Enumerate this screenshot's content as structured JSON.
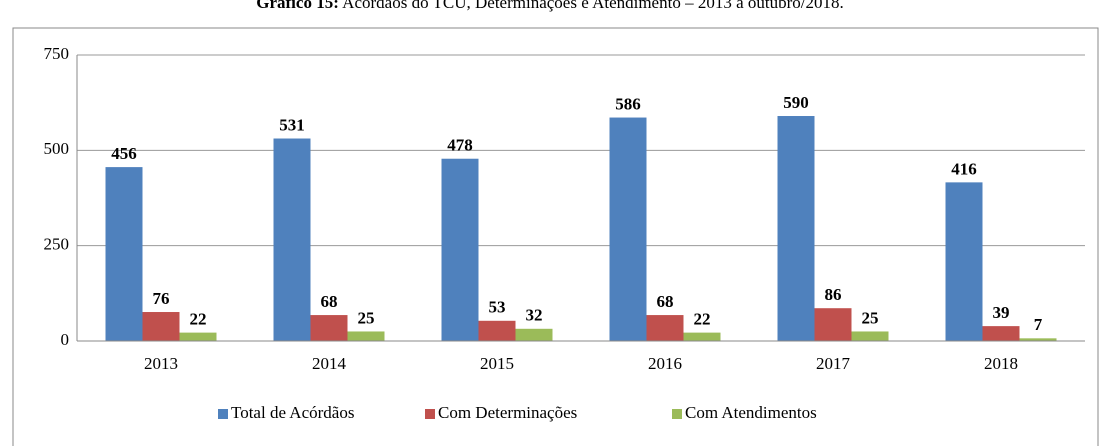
{
  "chart_data": {
    "type": "bar",
    "title_label": "Gráfico 15:",
    "title": "Acórdãos do TCU, Determinações e Atendimento – 2013 a outubro/2018.",
    "categories": [
      "2013",
      "2014",
      "2015",
      "2016",
      "2017",
      "2018"
    ],
    "series": [
      {
        "name": "Total de Acórdãos",
        "color": "#4f81bd",
        "label_color": "#1f497d",
        "values": [
          456,
          531,
          478,
          586,
          590,
          416
        ]
      },
      {
        "name": "Com Determinações",
        "color": "#c0504d",
        "label_color": "#953735",
        "values": [
          76,
          68,
          53,
          68,
          86,
          39
        ]
      },
      {
        "name": "Com Atendimentos",
        "color": "#9bbb59",
        "label_color": "#4f6228",
        "values": [
          22,
          25,
          32,
          22,
          25,
          7
        ]
      }
    ],
    "ylim": [
      0,
      750
    ],
    "yticks": [
      0,
      250,
      500,
      750
    ],
    "grid": true,
    "legend": "bottom"
  }
}
